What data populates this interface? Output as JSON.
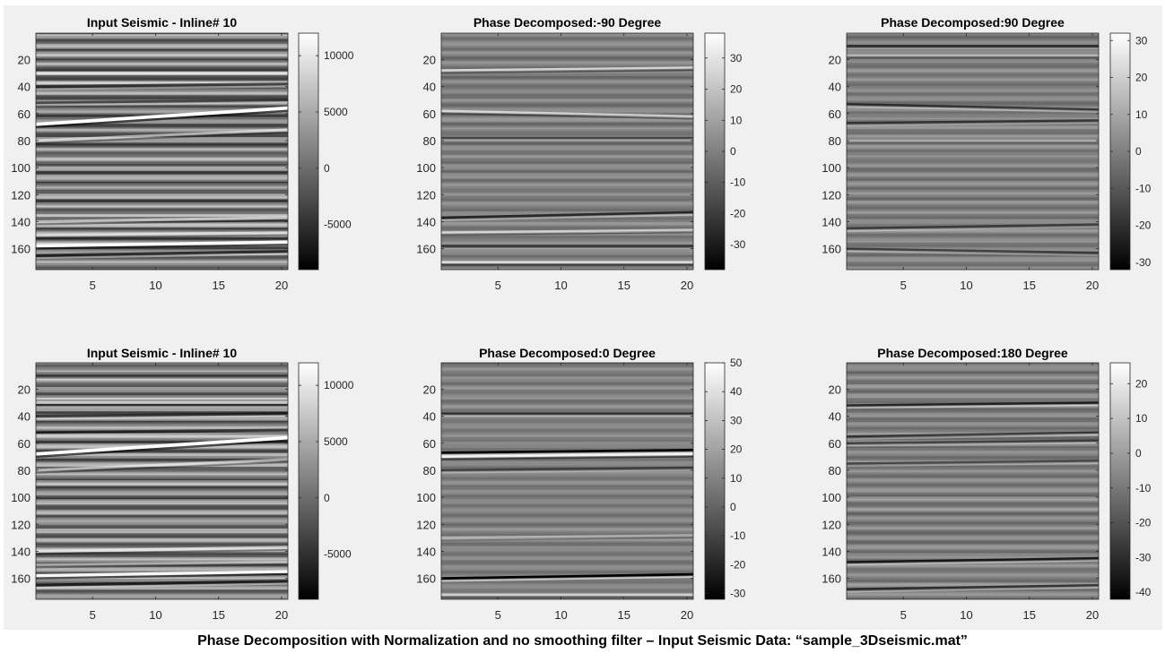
{
  "caption": "Phase Decomposition with Normalization and no smoothing filter – Input Seismic Data: “sample_3Dseismic.mat”",
  "chart_data": [
    {
      "type": "heatmap",
      "title": "Input Seismic - Inline# 10",
      "colormap": "gray",
      "xlim": [
        0.5,
        20.5
      ],
      "ylim": [
        0.5,
        175.5
      ],
      "y_reversed": true,
      "xticks": [
        5,
        10,
        15,
        20
      ],
      "yticks": [
        20,
        40,
        60,
        80,
        100,
        120,
        140,
        160
      ],
      "clim": [
        -9000,
        12000
      ],
      "colorbar_ticks": [
        -5000,
        0,
        5000,
        10000
      ],
      "contrast": 1.0,
      "events": [
        {
          "y0": 68,
          "y1": 56,
          "amp": 1.0,
          "w": 1.6
        },
        {
          "y0": 158,
          "y1": 155,
          "amp": 0.95,
          "w": 1.4
        },
        {
          "y0": 30,
          "y1": 30,
          "amp": 0.6,
          "w": 1.2
        },
        {
          "y0": 40,
          "y1": 38,
          "amp": -0.6,
          "w": 1.3
        },
        {
          "y0": 80,
          "y1": 72,
          "amp": 0.55,
          "w": 1.2
        },
        {
          "y0": 140,
          "y1": 137,
          "amp": 0.6,
          "w": 1.3
        },
        {
          "y0": 165,
          "y1": 162,
          "amp": -0.7,
          "w": 1.3
        },
        {
          "y0": 52,
          "y1": 50,
          "amp": -0.55,
          "w": 1.1
        },
        {
          "y0": 150,
          "y1": 148,
          "amp": 0.5,
          "w": 1.1
        }
      ]
    },
    {
      "type": "heatmap",
      "title": "Phase Decomposed:-90 Degree",
      "colormap": "gray",
      "xlim": [
        0.5,
        20.5
      ],
      "ylim": [
        0.5,
        175.5
      ],
      "y_reversed": true,
      "xticks": [
        5,
        10,
        15,
        20
      ],
      "yticks": [
        20,
        40,
        60,
        80,
        100,
        120,
        140,
        160
      ],
      "clim": [
        -38,
        38
      ],
      "colorbar_ticks": [
        -30,
        -20,
        -10,
        0,
        10,
        20,
        30
      ],
      "contrast": 0.35,
      "events": [
        {
          "y0": 28,
          "y1": 26,
          "amp": 0.7,
          "w": 1.0
        },
        {
          "y0": 58,
          "y1": 62,
          "amp": 0.65,
          "w": 1.0
        },
        {
          "y0": 78,
          "y1": 78,
          "amp": -0.55,
          "w": 1.0
        },
        {
          "y0": 137,
          "y1": 133,
          "amp": -0.7,
          "w": 1.1
        },
        {
          "y0": 148,
          "y1": 146,
          "amp": 0.6,
          "w": 1.0
        },
        {
          "y0": 158,
          "y1": 158,
          "amp": -0.55,
          "w": 1.0
        },
        {
          "y0": 170,
          "y1": 170,
          "amp": 0.75,
          "w": 1.0
        }
      ]
    },
    {
      "type": "heatmap",
      "title": "Phase Decomposed:90 Degree",
      "colormap": "gray",
      "xlim": [
        0.5,
        20.5
      ],
      "ylim": [
        0.5,
        175.5
      ],
      "y_reversed": true,
      "xticks": [
        5,
        10,
        15,
        20
      ],
      "yticks": [
        20,
        40,
        60,
        80,
        100,
        120,
        140,
        160
      ],
      "clim": [
        -32,
        32
      ],
      "colorbar_ticks": [
        -30,
        -20,
        -10,
        0,
        10,
        20,
        30
      ],
      "contrast": 0.35,
      "events": [
        {
          "y0": 10,
          "y1": 10,
          "amp": -0.65,
          "w": 1.0
        },
        {
          "y0": 17,
          "y1": 17,
          "amp": 0.5,
          "w": 1.0
        },
        {
          "y0": 53,
          "y1": 57,
          "amp": -0.6,
          "w": 1.0
        },
        {
          "y0": 67,
          "y1": 65,
          "amp": -0.55,
          "w": 1.0
        },
        {
          "y0": 80,
          "y1": 80,
          "amp": 0.4,
          "w": 1.0
        },
        {
          "y0": 145,
          "y1": 142,
          "amp": -0.5,
          "w": 1.0
        },
        {
          "y0": 160,
          "y1": 163,
          "amp": -0.55,
          "w": 1.0
        }
      ]
    },
    {
      "type": "heatmap",
      "title": "Input Seismic - Inline# 10",
      "colormap": "gray",
      "xlim": [
        0.5,
        20.5
      ],
      "ylim": [
        0.5,
        175.5
      ],
      "y_reversed": true,
      "xticks": [
        5,
        10,
        15,
        20
      ],
      "yticks": [
        20,
        40,
        60,
        80,
        100,
        120,
        140,
        160
      ],
      "clim": [
        -9000,
        12000
      ],
      "colorbar_ticks": [
        -5000,
        0,
        5000,
        10000
      ],
      "contrast": 1.0,
      "events": [
        {
          "y0": 68,
          "y1": 56,
          "amp": 1.0,
          "w": 1.6
        },
        {
          "y0": 158,
          "y1": 155,
          "amp": 0.95,
          "w": 1.4
        },
        {
          "y0": 30,
          "y1": 30,
          "amp": 0.6,
          "w": 1.2
        },
        {
          "y0": 40,
          "y1": 38,
          "amp": -0.6,
          "w": 1.3
        },
        {
          "y0": 80,
          "y1": 72,
          "amp": 0.55,
          "w": 1.2
        },
        {
          "y0": 140,
          "y1": 137,
          "amp": 0.6,
          "w": 1.3
        },
        {
          "y0": 165,
          "y1": 162,
          "amp": -0.7,
          "w": 1.3
        },
        {
          "y0": 52,
          "y1": 50,
          "amp": -0.55,
          "w": 1.1
        },
        {
          "y0": 150,
          "y1": 148,
          "amp": 0.5,
          "w": 1.1
        }
      ]
    },
    {
      "type": "heatmap",
      "title": "Phase Decomposed:0 Degree",
      "colormap": "gray",
      "xlim": [
        0.5,
        20.5
      ],
      "ylim": [
        0.5,
        175.5
      ],
      "y_reversed": true,
      "xticks": [
        5,
        10,
        15,
        20
      ],
      "yticks": [
        20,
        40,
        60,
        80,
        100,
        120,
        140,
        160
      ],
      "clim": [
        -32,
        50
      ],
      "colorbar_ticks": [
        -30,
        -20,
        -10,
        0,
        10,
        20,
        30,
        40,
        50
      ],
      "contrast": 0.3,
      "events": [
        {
          "y0": 38,
          "y1": 38,
          "amp": -0.6,
          "w": 1.0
        },
        {
          "y0": 67,
          "y1": 65,
          "amp": -1.0,
          "w": 1.1
        },
        {
          "y0": 70,
          "y1": 68,
          "amp": 0.9,
          "w": 1.0
        },
        {
          "y0": 80,
          "y1": 78,
          "amp": -0.45,
          "w": 1.0
        },
        {
          "y0": 130,
          "y1": 128,
          "amp": 0.4,
          "w": 1.0
        },
        {
          "y0": 160,
          "y1": 157,
          "amp": -1.0,
          "w": 1.1
        },
        {
          "y0": 172,
          "y1": 172,
          "amp": 0.6,
          "w": 1.0
        }
      ]
    },
    {
      "type": "heatmap",
      "title": "Phase Decomposed:180 Degree",
      "colormap": "gray",
      "xlim": [
        0.5,
        20.5
      ],
      "ylim": [
        0.5,
        175.5
      ],
      "y_reversed": true,
      "xticks": [
        5,
        10,
        15,
        20
      ],
      "yticks": [
        20,
        40,
        60,
        80,
        100,
        120,
        140,
        160
      ],
      "clim": [
        -42,
        26
      ],
      "colorbar_ticks": [
        -40,
        -30,
        -20,
        -10,
        0,
        10,
        20
      ],
      "contrast": 0.4,
      "events": [
        {
          "y0": 32,
          "y1": 30,
          "amp": -0.75,
          "w": 1.0
        },
        {
          "y0": 55,
          "y1": 52,
          "amp": -0.6,
          "w": 1.0
        },
        {
          "y0": 60,
          "y1": 58,
          "amp": -0.55,
          "w": 1.0
        },
        {
          "y0": 75,
          "y1": 73,
          "amp": -0.5,
          "w": 1.0
        },
        {
          "y0": 148,
          "y1": 145,
          "amp": -0.8,
          "w": 1.0
        },
        {
          "y0": 168,
          "y1": 165,
          "amp": -0.65,
          "w": 1.0
        }
      ]
    }
  ]
}
